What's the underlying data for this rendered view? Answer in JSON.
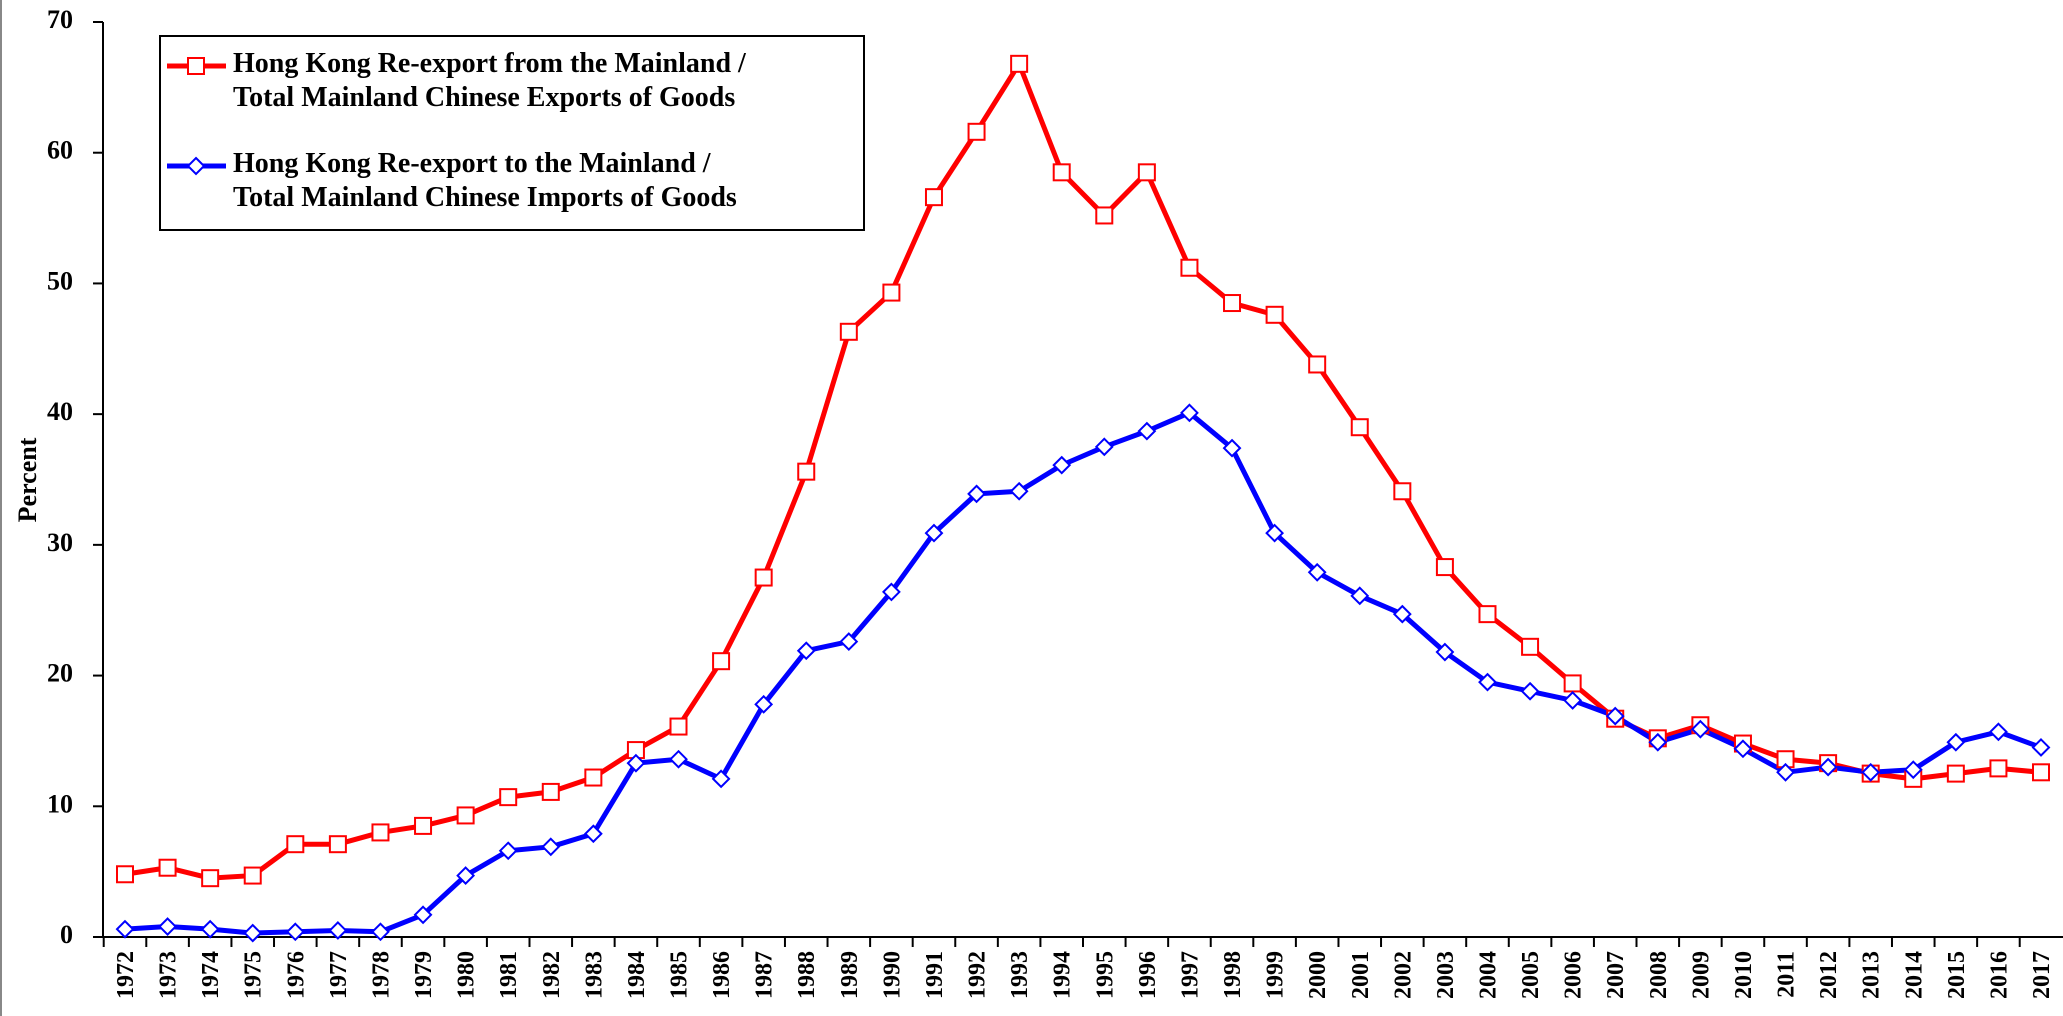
{
  "chart_data": {
    "type": "line",
    "y_label": "Percent",
    "categories": [
      "1972",
      "1973",
      "1974",
      "1975",
      "1976",
      "1977",
      "1978",
      "1979",
      "1980",
      "1981",
      "1982",
      "1983",
      "1984",
      "1985",
      "1986",
      "1987",
      "1988",
      "1989",
      "1990",
      "1991",
      "1992",
      "1993",
      "1994",
      "1995",
      "1996",
      "1997",
      "1998",
      "1999",
      "2000",
      "2001",
      "2002",
      "2003",
      "2004",
      "2005",
      "2006",
      "2007",
      "2008",
      "2009",
      "2010",
      "2011",
      "2012",
      "2013",
      "2014",
      "2015",
      "2016",
      "2017"
    ],
    "series": [
      {
        "name": "Hong Kong Re-export from the Mainland / Total Mainland Chinese Exports of Goods",
        "color": "#ff0000",
        "marker": "square",
        "values": [
          4.8,
          5.3,
          4.5,
          4.7,
          7.1,
          7.1,
          8.0,
          8.5,
          9.3,
          10.7,
          11.1,
          12.2,
          14.3,
          16.1,
          21.1,
          27.5,
          35.6,
          46.3,
          49.3,
          56.6,
          61.6,
          66.8,
          58.5,
          55.2,
          58.5,
          51.2,
          48.5,
          47.6,
          43.8,
          39.0,
          34.1,
          28.3,
          24.7,
          22.2,
          19.4,
          16.7,
          15.2,
          16.2,
          14.8,
          13.6,
          13.3,
          12.5,
          12.1,
          12.5,
          12.9,
          12.6
        ]
      },
      {
        "name": "Hong Kong Re-export to the Mainland / Total Mainland Chinese Imports of Goods",
        "color": "#0000ff",
        "marker": "diamond",
        "values": [
          0.6,
          0.8,
          0.6,
          0.3,
          0.4,
          0.5,
          0.4,
          1.7,
          4.7,
          6.6,
          6.9,
          7.9,
          13.3,
          13.6,
          12.1,
          17.8,
          21.9,
          22.6,
          26.4,
          30.9,
          33.9,
          34.1,
          36.1,
          37.5,
          38.7,
          40.1,
          37.4,
          30.9,
          27.9,
          26.1,
          24.7,
          21.8,
          19.5,
          18.8,
          18.1,
          16.9,
          14.9,
          15.9,
          14.4,
          12.6,
          13.0,
          12.6,
          12.8,
          14.9,
          15.7,
          14.5
        ]
      }
    ],
    "ylim": [
      0,
      70
    ],
    "yticks": [
      0,
      10,
      20,
      30,
      40,
      50,
      60,
      70
    ],
    "legend": "upper left"
  }
}
